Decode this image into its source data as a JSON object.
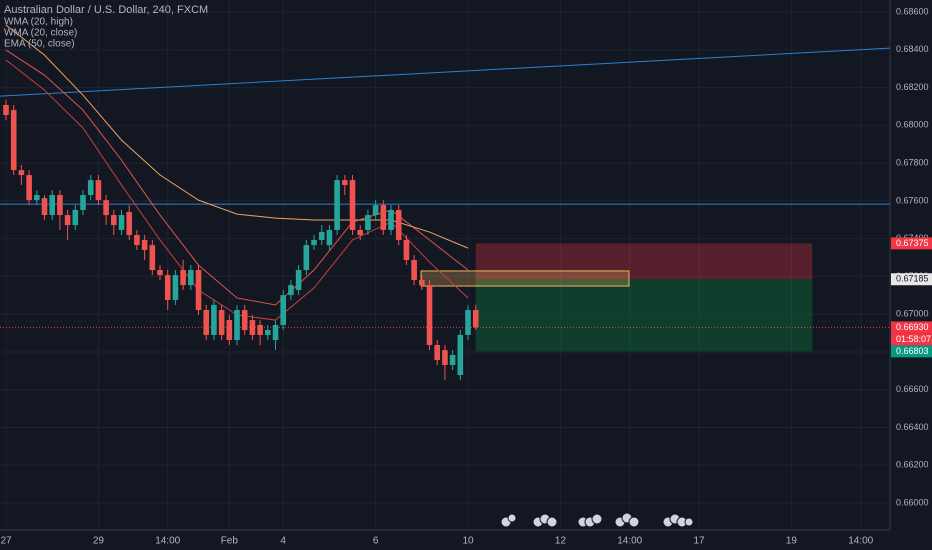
{
  "chart_data": {
    "type": "candlestick",
    "title": "Australian Dollar / U.S. Dollar, 240, FXCM",
    "xlim": [
      -0.78,
      114.8
    ],
    "ylim": [
      0.65857,
      0.68664
    ],
    "xticks": [
      {
        "value": 0,
        "label": "27"
      },
      {
        "value": 12,
        "label": "29"
      },
      {
        "value": 21,
        "label": "14:00"
      },
      {
        "value": 29,
        "label": "Feb"
      },
      {
        "value": 36,
        "label": "4"
      },
      {
        "value": 48,
        "label": "6"
      },
      {
        "value": 60,
        "label": "10"
      },
      {
        "value": 72,
        "label": "12"
      },
      {
        "value": 81,
        "label": "14:00"
      },
      {
        "value": 90,
        "label": "17"
      },
      {
        "value": 102,
        "label": "19"
      },
      {
        "value": 111,
        "label": "14:00"
      }
    ],
    "yticks": [
      {
        "value": 0.686,
        "label": "0.68600"
      },
      {
        "value": 0.684,
        "label": "0.68400"
      },
      {
        "value": 0.682,
        "label": "0.68200"
      },
      {
        "value": 0.68,
        "label": "0.68000"
      },
      {
        "value": 0.678,
        "label": "0.67800"
      },
      {
        "value": 0.676,
        "label": "0.67600"
      },
      {
        "value": 0.674,
        "label": "0.67400"
      },
      {
        "value": 0.672,
        "label": "0.67200"
      },
      {
        "value": 0.67,
        "label": "0.67000"
      },
      {
        "value": 0.668,
        "label": "0.66800"
      },
      {
        "value": 0.666,
        "label": "0.66600"
      },
      {
        "value": 0.664,
        "label": "0.66400"
      },
      {
        "value": 0.662,
        "label": "0.66200"
      },
      {
        "value": 0.66,
        "label": "0.66000"
      }
    ],
    "grid": true,
    "up_color": "#26a69a",
    "down_color": "#ef5350",
    "open": [
      0.68108,
      0.68081,
      0.67763,
      0.67737,
      0.67604,
      0.67615,
      0.67525,
      0.67631,
      0.67525,
      0.67472,
      0.67552,
      0.67631,
      0.6771,
      0.67604,
      0.67525,
      0.67446,
      0.67541,
      0.67419,
      0.67393,
      0.67366,
      0.67234,
      0.67207,
      0.67075,
      0.67234,
      0.67154,
      0.67234,
      0.67022,
      0.6689,
      0.67022,
      0.66969,
      0.66863,
      0.67022,
      0.66969,
      0.66943,
      0.6689,
      0.66863,
      0.66943,
      0.67101,
      0.67128,
      0.67234,
      0.67366,
      0.67393,
      0.67366,
      0.67446,
      0.6771,
      0.6771,
      0.67446,
      0.67446,
      0.67525,
      0.67578,
      0.67446,
      0.67552,
      0.67393,
      0.67287,
      0.67181,
      0.67154,
      0.66837,
      0.6681,
      0.66731,
      0.66678,
      0.6689,
      0.67022
    ],
    "high": [
      0.68135,
      0.68108,
      0.6779,
      0.67763,
      0.67657,
      0.67631,
      0.67657,
      0.67657,
      0.67552,
      0.67578,
      0.67657,
      0.67737,
      0.67737,
      0.67631,
      0.67552,
      0.67552,
      0.67578,
      0.67446,
      0.67419,
      0.67393,
      0.6726,
      0.67234,
      0.67234,
      0.67287,
      0.6726,
      0.6726,
      0.67049,
      0.67075,
      0.67049,
      0.66996,
      0.67049,
      0.67049,
      0.66996,
      0.66969,
      0.66943,
      0.66969,
      0.67128,
      0.67181,
      0.6726,
      0.67393,
      0.67419,
      0.67472,
      0.67472,
      0.67737,
      0.67737,
      0.67737,
      0.67472,
      0.67552,
      0.67604,
      0.67604,
      0.67578,
      0.67578,
      0.67419,
      0.67313,
      0.67207,
      0.67181,
      0.66863,
      0.66837,
      0.6681,
      0.66916,
      0.67049,
      0.67049
    ],
    "low": [
      0.68028,
      0.67737,
      0.67684,
      0.67578,
      0.67578,
      0.67499,
      0.67499,
      0.67446,
      0.67393,
      0.67446,
      0.67525,
      0.67604,
      0.67578,
      0.67472,
      0.67419,
      0.67419,
      0.67393,
      0.6734,
      0.67287,
      0.67207,
      0.67181,
      0.67022,
      0.67049,
      0.67128,
      0.67128,
      0.66996,
      0.66863,
      0.66863,
      0.66863,
      0.66837,
      0.66837,
      0.6689,
      0.66863,
      0.66837,
      0.66863,
      0.6681,
      0.66916,
      0.67075,
      0.67101,
      0.67207,
      0.6734,
      0.67366,
      0.6734,
      0.67419,
      0.67631,
      0.67419,
      0.67393,
      0.67419,
      0.67499,
      0.67419,
      0.67419,
      0.67366,
      0.6726,
      0.67154,
      0.67128,
      0.6681,
      0.66731,
      0.66651,
      0.66704,
      0.66651,
      0.66863,
      0.66916
    ],
    "close": [
      0.68055,
      0.67763,
      0.67737,
      0.67604,
      0.67631,
      0.67525,
      0.67631,
      0.67525,
      0.67472,
      0.67552,
      0.67631,
      0.6771,
      0.67604,
      0.67525,
      0.67472,
      0.67525,
      0.67419,
      0.67366,
      0.6734,
      0.67234,
      0.67207,
      0.67075,
      0.67207,
      0.67154,
      0.67234,
      0.67022,
      0.6689,
      0.67049,
      0.6689,
      0.66863,
      0.67022,
      0.66916,
      0.6689,
      0.6689,
      0.66916,
      0.66943,
      0.67101,
      0.67154,
      0.67234,
      0.67366,
      0.67393,
      0.67435,
      0.67446,
      0.6771,
      0.67684,
      0.67446,
      0.67419,
      0.67525,
      0.67578,
      0.67446,
      0.67552,
      0.67393,
      0.67287,
      0.67181,
      0.67154,
      0.66837,
      0.66757,
      0.66731,
      0.66784,
      0.6689,
      0.67022,
      0.6693
    ],
    "lines": [
      {
        "name": "WMA (20, high)",
        "color": "#e0534f",
        "x": [
          0,
          5,
          10,
          15,
          20,
          25,
          30,
          35,
          40,
          45,
          50,
          55,
          60
        ],
        "values": [
          0.68399,
          0.68266,
          0.68081,
          0.67816,
          0.67525,
          0.6726,
          0.67086,
          0.67049,
          0.67234,
          0.67488,
          0.67552,
          0.67393,
          0.67234
        ]
      },
      {
        "name": "WMA (20, close)",
        "color": "#c9403f",
        "x": [
          0,
          5,
          10,
          15,
          20,
          25,
          30,
          35,
          40,
          45,
          50,
          55,
          60
        ],
        "values": [
          0.68346,
          0.68187,
          0.67986,
          0.67684,
          0.67393,
          0.67128,
          0.66996,
          0.66969,
          0.67139,
          0.67393,
          0.67488,
          0.67276,
          0.67086
        ]
      },
      {
        "name": "EMA (50, close)",
        "color": "#f0a35e",
        "x": [
          0,
          5,
          10,
          15,
          20,
          25,
          30,
          35,
          40,
          45,
          50,
          55,
          60
        ],
        "values": [
          0.68531,
          0.68372,
          0.6816,
          0.67922,
          0.67737,
          0.67604,
          0.6753,
          0.67509,
          0.67499,
          0.67499,
          0.67499,
          0.67435,
          0.6735
        ]
      }
    ],
    "hline": 0.67583,
    "trendline": [
      0.68155,
      0.68409
    ],
    "current_price": 0.6693,
    "position": {
      "start": 61.0,
      "end": 104.7,
      "stop": 0.67375,
      "entry": 0.67185,
      "target": 0.66803
    },
    "zone": {
      "start": 53.9,
      "end": 80.9,
      "top": 0.67229,
      "bottom": 0.67149
    },
    "price_labels": [
      {
        "value": 0.67375,
        "label": "0.67375",
        "color": "#f23645"
      },
      {
        "value": 0.67185,
        "label": "0.67185",
        "color": "#e8e8e8"
      },
      {
        "value": 0.6693,
        "label": "0.66930",
        "color": "#f23645"
      },
      {
        "value": 0.66803,
        "label": "0.66803",
        "color": "#089981"
      }
    ],
    "countdown": "01:58:07"
  }
}
